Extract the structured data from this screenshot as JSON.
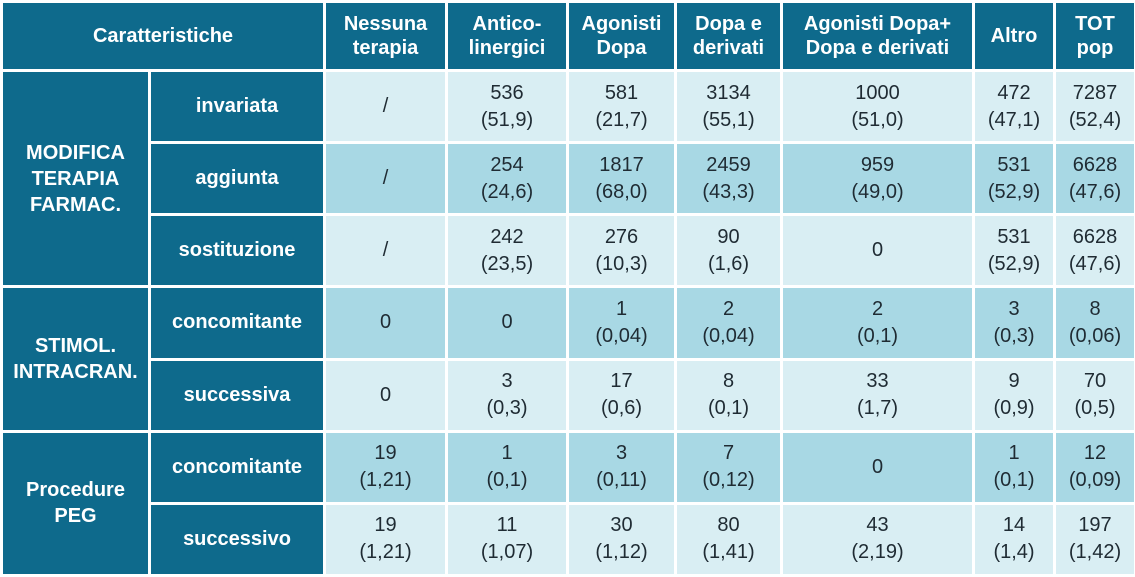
{
  "header": {
    "corner": "Caratteristiche",
    "columns": [
      "Nessuna\nterapia",
      "Antico-\nlinergici",
      "Agonisti\nDopa",
      "Dopa e\nderivati",
      "Agonisti Dopa+\nDopa e derivati",
      "Altro",
      "TOT\npop"
    ]
  },
  "groups": [
    {
      "label": "MODIFICA\nTERAPIA\nFARMAC.",
      "rows": [
        {
          "label": "invariata",
          "cells": [
            {
              "v": "/",
              "p": ""
            },
            {
              "v": "536",
              "p": "(51,9)"
            },
            {
              "v": "581",
              "p": "(21,7)"
            },
            {
              "v": "3134",
              "p": "(55,1)"
            },
            {
              "v": "1000",
              "p": "(51,0)"
            },
            {
              "v": "472",
              "p": "(47,1)"
            },
            {
              "v": "7287",
              "p": "(52,4)"
            }
          ]
        },
        {
          "label": "aggiunta",
          "cells": [
            {
              "v": "/",
              "p": ""
            },
            {
              "v": "254",
              "p": "(24,6)"
            },
            {
              "v": "1817",
              "p": "(68,0)"
            },
            {
              "v": "2459",
              "p": "(43,3)"
            },
            {
              "v": "959",
              "p": "(49,0)"
            },
            {
              "v": "531",
              "p": "(52,9)"
            },
            {
              "v": "6628",
              "p": "(47,6)"
            }
          ]
        },
        {
          "label": "sostituzione",
          "cells": [
            {
              "v": "/",
              "p": ""
            },
            {
              "v": "242",
              "p": "(23,5)"
            },
            {
              "v": "276",
              "p": "(10,3)"
            },
            {
              "v": "90",
              "p": "(1,6)"
            },
            {
              "v": "0",
              "p": ""
            },
            {
              "v": "531",
              "p": "(52,9)"
            },
            {
              "v": "6628",
              "p": "(47,6)"
            }
          ]
        }
      ]
    },
    {
      "label": "STIMOL.\nINTRACRAN.",
      "rows": [
        {
          "label": "concomitante",
          "cells": [
            {
              "v": "0",
              "p": ""
            },
            {
              "v": "0",
              "p": ""
            },
            {
              "v": "1",
              "p": "(0,04)"
            },
            {
              "v": "2",
              "p": "(0,04)"
            },
            {
              "v": "2",
              "p": "(0,1)"
            },
            {
              "v": "3",
              "p": "(0,3)"
            },
            {
              "v": "8",
              "p": "(0,06)"
            }
          ]
        },
        {
          "label": "successiva",
          "cells": [
            {
              "v": "0",
              "p": ""
            },
            {
              "v": "3",
              "p": "(0,3)"
            },
            {
              "v": "17",
              "p": "(0,6)"
            },
            {
              "v": "8",
              "p": "(0,1)"
            },
            {
              "v": "33",
              "p": "(1,7)"
            },
            {
              "v": "9",
              "p": "(0,9)"
            },
            {
              "v": "70",
              "p": "(0,5)"
            }
          ]
        }
      ]
    },
    {
      "label": "Procedure\nPEG",
      "rows": [
        {
          "label": "concomitante",
          "cells": [
            {
              "v": "19",
              "p": "(1,21)"
            },
            {
              "v": "1",
              "p": "(0,1)"
            },
            {
              "v": "3",
              "p": "(0,11)"
            },
            {
              "v": "7",
              "p": "(0,12)"
            },
            {
              "v": "0",
              "p": ""
            },
            {
              "v": "1",
              "p": "(0,1)"
            },
            {
              "v": "12",
              "p": "(0,09)"
            }
          ]
        },
        {
          "label": "successivo",
          "cells": [
            {
              "v": "19",
              "p": "(1,21)"
            },
            {
              "v": "11",
              "p": "(1,07)"
            },
            {
              "v": "30",
              "p": "(1,12)"
            },
            {
              "v": "80",
              "p": "(1,41)"
            },
            {
              "v": "43",
              "p": "(2,19)"
            },
            {
              "v": "14",
              "p": "(1,4)"
            },
            {
              "v": "197",
              "p": "(1,42)"
            }
          ]
        }
      ]
    }
  ],
  "colors": {
    "header_bg": "#0e6a8c",
    "header_text": "#ffffff",
    "cell_light": "#d9eef3",
    "cell_dark": "#a8d8e4",
    "cell_text": "#1f2b33"
  }
}
